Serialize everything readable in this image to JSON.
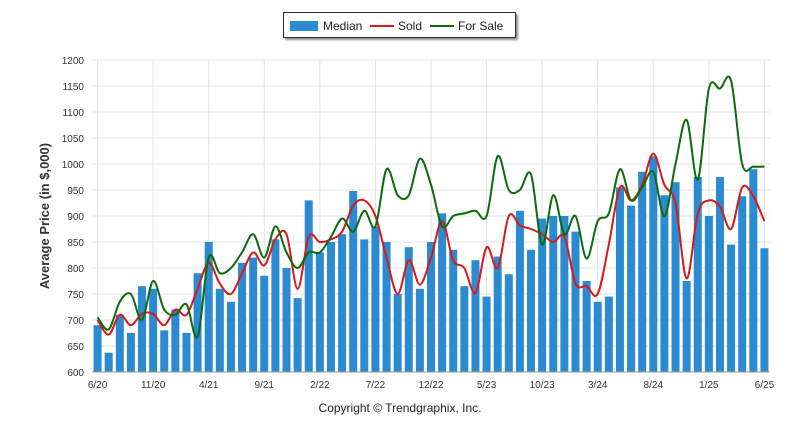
{
  "chart_data": {
    "type": "bar",
    "ylabel": "Average Price (in $,000)",
    "ylim": [
      600,
      1200
    ],
    "yticks": [
      600,
      650,
      700,
      750,
      800,
      850,
      900,
      950,
      1000,
      1050,
      1100,
      1150,
      1200
    ],
    "x_tick_labels": [
      "6/20",
      "11/20",
      "4/21",
      "9/21",
      "2/22",
      "7/22",
      "12/22",
      "5/23",
      "10/23",
      "3/24",
      "8/24",
      "1/25",
      "6/25"
    ],
    "x_tick_step_months": 5,
    "months_count": 61,
    "grid": true,
    "legend_position": "top-center",
    "series": [
      {
        "name": "Median",
        "type": "bar",
        "color": "#2b8ad0",
        "values": [
          690,
          637,
          710,
          675,
          765,
          760,
          680,
          720,
          675,
          790,
          850,
          760,
          735,
          810,
          820,
          785,
          855,
          800,
          742,
          930,
          830,
          850,
          865,
          948,
          855,
          880,
          850,
          750,
          840,
          760,
          850,
          905,
          835,
          765,
          815,
          745,
          822,
          788,
          910,
          835,
          895,
          900,
          900,
          870,
          775,
          735,
          745,
          955,
          920,
          985,
          1015,
          940,
          965,
          775,
          975,
          900,
          975,
          845,
          938,
          990,
          838
        ]
      },
      {
        "name": "Sold",
        "type": "line",
        "color": "#d91919",
        "values": [
          700,
          672,
          710,
          690,
          712,
          712,
          690,
          720,
          710,
          760,
          810,
          770,
          750,
          790,
          830,
          805,
          855,
          865,
          760,
          860,
          850,
          855,
          870,
          920,
          930,
          900,
          820,
          750,
          815,
          768,
          820,
          890,
          815,
          800,
          752,
          840,
          800,
          900,
          882,
          875,
          865,
          850,
          860,
          770,
          765,
          750,
          845,
          955,
          930,
          960,
          1020,
          960,
          925,
          780,
          905,
          930,
          918,
          875,
          955,
          938,
          890
        ]
      },
      {
        "name": "For Sale",
        "type": "line",
        "color": "#0c6b0c",
        "values": [
          705,
          682,
          735,
          750,
          700,
          775,
          720,
          710,
          730,
          668,
          820,
          790,
          800,
          830,
          865,
          820,
          880,
          830,
          800,
          830,
          830,
          860,
          895,
          870,
          910,
          880,
          990,
          940,
          940,
          1010,
          960,
          880,
          900,
          905,
          910,
          900,
          1015,
          950,
          950,
          980,
          845,
          940,
          865,
          900,
          818,
          890,
          905,
          990,
          930,
          955,
          985,
          900,
          1000,
          1085,
          970,
          1145,
          1145,
          1160,
          1000,
          995,
          995
        ]
      }
    ]
  },
  "legend": {
    "median": "Median",
    "sold": "Sold",
    "for_sale": "For Sale"
  },
  "footer": "Copyright © Trendgraphix, Inc."
}
